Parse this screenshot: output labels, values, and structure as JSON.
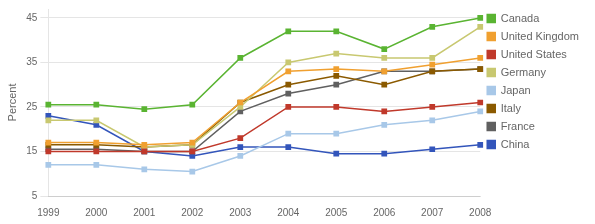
{
  "chart_data": {
    "type": "line",
    "categories": [
      "1999",
      "2000",
      "2001",
      "2002",
      "2003",
      "2004",
      "2005",
      "2006",
      "2007",
      "2008"
    ],
    "series": [
      {
        "name": "Canada",
        "color": "#5ab432",
        "marker": "square",
        "values": [
          25.5,
          25.5,
          24.5,
          25.5,
          36,
          42,
          42,
          38,
          43,
          45
        ]
      },
      {
        "name": "United Kingdom",
        "color": "#f0a030",
        "marker": "square",
        "values": [
          17,
          17,
          16.5,
          17,
          26,
          33,
          33.5,
          33,
          34.5,
          36
        ]
      },
      {
        "name": "United States",
        "color": "#c0392b",
        "marker": "square",
        "values": [
          15,
          15,
          15,
          15,
          18,
          25,
          25,
          24,
          25,
          26
        ]
      },
      {
        "name": "Germany",
        "color": "#c8c870",
        "marker": "square",
        "values": [
          22,
          22,
          16,
          16.5,
          25,
          35,
          37,
          36,
          36,
          43
        ]
      },
      {
        "name": "Japan",
        "color": "#a8c8e8",
        "marker": "square",
        "values": [
          12,
          12,
          11,
          10.5,
          14,
          19,
          19,
          21,
          22,
          24
        ]
      },
      {
        "name": "Italy",
        "color": "#8b5a00",
        "marker": "square",
        "values": [
          16.5,
          16.5,
          16,
          16.5,
          26,
          30,
          32,
          30,
          33,
          33.5
        ]
      },
      {
        "name": "France",
        "color": "#606060",
        "marker": "square",
        "values": [
          15.5,
          15.5,
          15,
          15,
          24,
          28,
          30,
          33,
          33,
          33.5
        ]
      },
      {
        "name": "China",
        "color": "#3355bb",
        "marker": "square",
        "values": [
          23,
          21,
          15,
          14,
          16,
          16,
          14.5,
          14.5,
          15.5,
          16.5
        ]
      }
    ],
    "ylabel": "Percent",
    "ylim": [
      5,
      47
    ],
    "yticks": [
      5,
      15,
      25,
      35,
      45
    ],
    "grid": true,
    "legend": "right"
  }
}
